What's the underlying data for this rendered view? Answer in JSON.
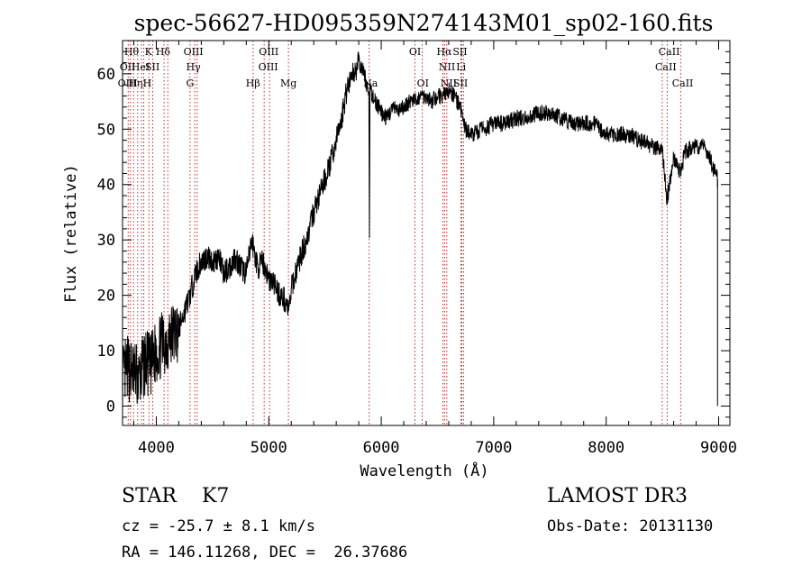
{
  "chart_data": {
    "type": "line",
    "title": "spec-56627-HD095359N274143M01_sp02-160.fits",
    "xlabel": "Wavelength (Å)",
    "ylabel": "Flux (relative)",
    "xlim": [
      3700,
      9100
    ],
    "ylim": [
      -3.5,
      66
    ],
    "x_ticks": [
      4000,
      5000,
      6000,
      7000,
      8000,
      9000
    ],
    "y_ticks": [
      0,
      10,
      20,
      30,
      40,
      50,
      60
    ],
    "grid": false,
    "series": [
      {
        "x": [
          3700,
          3750,
          3800,
          3850,
          3900,
          3950,
          4000,
          4050,
          4100,
          4150,
          4200,
          4250,
          4300,
          4350,
          4400,
          4450,
          4500,
          4550,
          4600,
          4650,
          4700,
          4750,
          4800,
          4850,
          4860,
          4900,
          4950,
          5000,
          5050,
          5100,
          5150,
          5180,
          5200,
          5250,
          5300,
          5350,
          5400,
          5450,
          5500,
          5550,
          5600,
          5650,
          5700,
          5750,
          5800,
          5850,
          5890,
          5895,
          5900,
          5950,
          6000,
          6050,
          6100,
          6150,
          6200,
          6250,
          6300,
          6350,
          6400,
          6450,
          6500,
          6550,
          6600,
          6650,
          6700,
          6750,
          6800,
          6900,
          7000,
          7100,
          7200,
          7300,
          7400,
          7500,
          7600,
          7700,
          7800,
          7900,
          8000,
          8100,
          8200,
          8300,
          8400,
          8500,
          8540,
          8600,
          8662,
          8700,
          8800,
          8850,
          8900,
          8950,
          8990
        ],
        "y": [
          5,
          7,
          6,
          5,
          8,
          7,
          10,
          11,
          12,
          13,
          14,
          17,
          20,
          24,
          26,
          27,
          26,
          27,
          24,
          25,
          27,
          25,
          24,
          30,
          29,
          25,
          26,
          23,
          22,
          20,
          19,
          17,
          21,
          25,
          28,
          31,
          35,
          38,
          41,
          44,
          48,
          52,
          58,
          60,
          62,
          60,
          56,
          30,
          57,
          55,
          53,
          52,
          54,
          53,
          54,
          55,
          55,
          56,
          56,
          55,
          56,
          56,
          57,
          56,
          54,
          50,
          49,
          50,
          51,
          51,
          52,
          52,
          53,
          53,
          52,
          51,
          51,
          51,
          49,
          49,
          49,
          48,
          47,
          46,
          37,
          45,
          42,
          46,
          47,
          47,
          46,
          43,
          41
        ]
      }
    ],
    "line_markers": [
      {
        "wavelength": 3750,
        "label": "Hθ"
      },
      {
        "wavelength": 3770,
        "label": "OII"
      },
      {
        "wavelength": 3798,
        "label": "OIII"
      },
      {
        "wavelength": 3835,
        "label": "Hη"
      },
      {
        "wavelength": 3869,
        "label": "HeI"
      },
      {
        "wavelength": 3889,
        "label": "H"
      },
      {
        "wavelength": 3934,
        "label": "K"
      },
      {
        "wavelength": 3969,
        "label": "SII"
      },
      {
        "wavelength": 4069,
        "label": "Hδ"
      },
      {
        "wavelength": 4102,
        "label": "Hγ"
      },
      {
        "wavelength": 4300,
        "label": "G"
      },
      {
        "wavelength": 4341,
        "label": "OIII"
      },
      {
        "wavelength": 4363,
        "label": "Hβ"
      },
      {
        "wavelength": 4861,
        "label": "OIII"
      },
      {
        "wavelength": 4959,
        "label": "OIII"
      },
      {
        "wavelength": 5007,
        "label": "Mg"
      },
      {
        "wavelength": 5175,
        "label": "Na"
      },
      {
        "wavelength": 5893,
        "label": "OI"
      },
      {
        "wavelength": 6300,
        "label": "OI"
      },
      {
        "wavelength": 6364,
        "label": "NII"
      },
      {
        "wavelength": 6548,
        "label": "Hα"
      },
      {
        "wavelength": 6563,
        "label": "NII"
      },
      {
        "wavelength": 6583,
        "label": "Li"
      },
      {
        "wavelength": 6708,
        "label": "SII"
      },
      {
        "wavelength": 6716,
        "label": "SII"
      },
      {
        "wavelength": 6731,
        "label": "SII"
      },
      {
        "wavelength": 8498,
        "label": "CaII"
      },
      {
        "wavelength": 8542,
        "label": "CaII"
      },
      {
        "wavelength": 8662,
        "label": "CaII"
      }
    ],
    "line_labels": [
      {
        "text": "Hθ",
        "x": 3780,
        "row": 0
      },
      {
        "text": "K",
        "x": 3930,
        "row": 0
      },
      {
        "text": "Hδ",
        "x": 4060,
        "row": 0
      },
      {
        "text": "OIII",
        "x": 4330,
        "row": 0
      },
      {
        "text": "OIII",
        "x": 5000,
        "row": 0
      },
      {
        "text": "OI",
        "x": 6300,
        "row": 0
      },
      {
        "text": "Hα",
        "x": 6560,
        "row": 0
      },
      {
        "text": "SII",
        "x": 6700,
        "row": 0
      },
      {
        "text": "CaII",
        "x": 8560,
        "row": 0
      },
      {
        "text": "OII",
        "x": 3745,
        "row": 1
      },
      {
        "text": "HeI",
        "x": 3860,
        "row": 1
      },
      {
        "text": "SII",
        "x": 3965,
        "row": 1
      },
      {
        "text": "Hγ",
        "x": 4330,
        "row": 1
      },
      {
        "text": "OIII",
        "x": 4995,
        "row": 1
      },
      {
        "text": "NII",
        "x": 6585,
        "row": 1
      },
      {
        "text": "Li",
        "x": 6710,
        "row": 1
      },
      {
        "text": "CaII",
        "x": 8530,
        "row": 1
      },
      {
        "text": "OIII",
        "x": 3745,
        "row": 2
      },
      {
        "text": "Hη",
        "x": 3815,
        "row": 2
      },
      {
        "text": "H",
        "x": 3920,
        "row": 2
      },
      {
        "text": "G",
        "x": 4300,
        "row": 2
      },
      {
        "text": "Hβ",
        "x": 4860,
        "row": 2
      },
      {
        "text": "Mg",
        "x": 5175,
        "row": 2
      },
      {
        "text": "Na",
        "x": 5905,
        "row": 2
      },
      {
        "text": "OI",
        "x": 6370,
        "row": 2
      },
      {
        "text": "NII",
        "x": 6600,
        "row": 2
      },
      {
        "text": "SII",
        "x": 6705,
        "row": 2
      },
      {
        "text": "CaII",
        "x": 8680,
        "row": 2
      }
    ],
    "marker_color": "#b01818"
  },
  "footer": {
    "class_text": "STAR    K7",
    "survey": "LAMOST DR3",
    "cz": "cz = -25.7 ± 8.1 km/s",
    "obs_date": "Obs-Date: 20131130",
    "radec": "RA = 146.11268, DEC =  26.37686"
  }
}
